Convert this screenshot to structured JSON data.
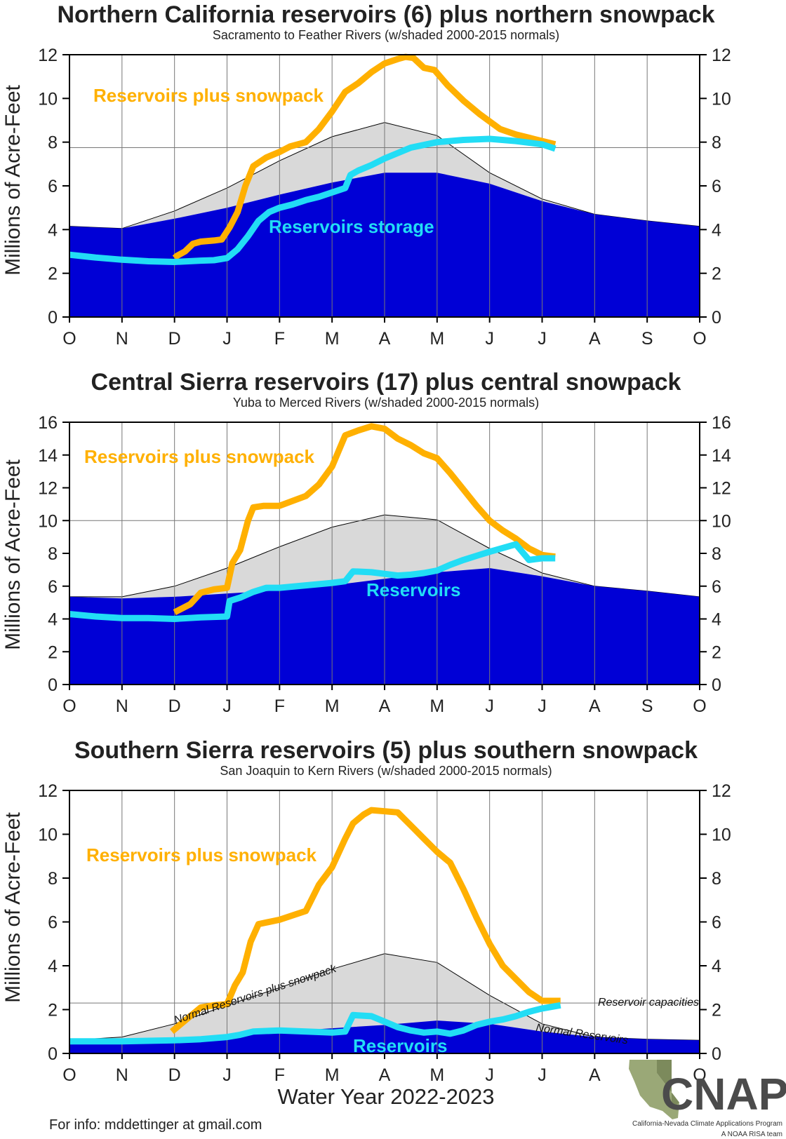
{
  "colors": {
    "normal_total_fill": "#d9d9d9",
    "normal_reservoir_fill": "#0000d6",
    "snowpack_line": "#ffb000",
    "reservoir_line": "#22ddf5",
    "axis": "#000000",
    "grid": "#777777"
  },
  "footer": {
    "text": "For info: mddettinger at gmail.com"
  },
  "logo": {
    "icon": "california-nevada-map-icon",
    "text": "CNAP",
    "line1": "California-Nevada Climate Applications Program",
    "line2": "A NOAA RISA team"
  },
  "chart_data": [
    {
      "type": "area",
      "title": "Northern California reservoirs (6) plus northern snowpack",
      "subtitle": "Sacramento to Feather Rivers (w/shaded 2000-2015 normals)",
      "ylabel": "Millions of Acre-Feet",
      "xlabel": "",
      "ylim": [
        0,
        12
      ],
      "yticks": [
        0,
        2,
        4,
        6,
        8,
        10,
        12
      ],
      "x_ticks": [
        "O",
        "N",
        "D",
        "J",
        "F",
        "M",
        "A",
        "M",
        "J",
        "J",
        "A",
        "S",
        "O"
      ],
      "grid": "vertical at month ticks",
      "reference_line": {
        "label": "",
        "value": 7.75
      },
      "normal_total": [
        4.15,
        4.05,
        4.85,
        5.9,
        7.15,
        8.25,
        8.9,
        8.3,
        6.6,
        5.4,
        4.7,
        4.4,
        4.15
      ],
      "normal_reservoirs": [
        4.15,
        4.05,
        4.5,
        5.0,
        5.6,
        6.15,
        6.6,
        6.6,
        6.1,
        5.3,
        4.7,
        4.4,
        4.15
      ],
      "series": [
        {
          "name": "Reservoirs plus snowpack",
          "color": "#ffb000",
          "x": [
            2.0,
            2.05,
            2.2,
            2.35,
            2.5,
            2.75,
            2.9,
            3.05,
            3.2,
            3.35,
            3.5,
            3.75,
            4.0,
            4.2,
            4.5,
            4.75,
            5.0,
            5.25,
            5.5,
            5.75,
            6.0,
            6.25,
            6.4,
            6.55,
            6.75,
            6.95,
            7.2,
            7.5,
            7.8,
            8.0,
            8.2,
            8.5,
            8.75,
            9.0,
            9.25
          ],
          "y": [
            2.7,
            2.8,
            3.0,
            3.35,
            3.45,
            3.5,
            3.55,
            4.1,
            4.8,
            6.0,
            6.9,
            7.3,
            7.55,
            7.8,
            8.0,
            8.6,
            9.4,
            10.3,
            10.7,
            11.2,
            11.6,
            11.8,
            11.9,
            11.85,
            11.4,
            11.3,
            10.6,
            9.9,
            9.3,
            8.95,
            8.6,
            8.35,
            8.2,
            8.05,
            7.9
          ]
        },
        {
          "name": "Reservoirs storage",
          "color": "#22ddf5",
          "x": [
            0.0,
            0.5,
            1.0,
            1.5,
            2.0,
            2.5,
            2.75,
            3.0,
            3.2,
            3.4,
            3.6,
            3.8,
            4.0,
            4.25,
            4.5,
            4.75,
            5.0,
            5.25,
            5.35,
            5.5,
            5.75,
            6.0,
            6.5,
            7.0,
            7.5,
            8.0,
            8.5,
            9.0,
            9.25
          ],
          "y": [
            2.85,
            2.72,
            2.62,
            2.55,
            2.52,
            2.58,
            2.6,
            2.7,
            3.1,
            3.7,
            4.4,
            4.8,
            5.0,
            5.15,
            5.35,
            5.5,
            5.7,
            5.9,
            6.5,
            6.7,
            6.95,
            7.25,
            7.75,
            8.0,
            8.1,
            8.15,
            8.05,
            7.9,
            7.7
          ]
        }
      ],
      "labels": [
        {
          "text": "Reservoirs plus snowpack",
          "color": "#ffb000"
        },
        {
          "text": "Reservoirs storage",
          "color": "#22ddf5"
        }
      ]
    },
    {
      "type": "area",
      "title": "Central Sierra reservoirs (17) plus central snowpack",
      "subtitle": "Yuba to Merced Rivers (w/shaded 2000-2015 normals)",
      "ylabel": "Millions of Acre-Feet",
      "xlabel": "",
      "ylim": [
        0,
        16
      ],
      "yticks": [
        0,
        2,
        4,
        6,
        8,
        10,
        12,
        14,
        16
      ],
      "x_ticks": [
        "O",
        "N",
        "D",
        "J",
        "F",
        "M",
        "A",
        "M",
        "J",
        "J",
        "A",
        "S",
        "O"
      ],
      "grid": "vertical at month ticks",
      "reference_line": {
        "label": "",
        "value": 10.0
      },
      "normal_total": [
        5.35,
        5.35,
        6.0,
        7.1,
        8.4,
        9.6,
        10.35,
        10.05,
        8.3,
        6.8,
        6.0,
        5.7,
        5.35
      ],
      "normal_reservoirs": [
        5.35,
        5.25,
        5.35,
        5.55,
        5.75,
        6.05,
        6.45,
        6.85,
        7.1,
        6.6,
        6.0,
        5.7,
        5.35
      ],
      "series": [
        {
          "name": "Reservoirs plus snowpack",
          "color": "#ffb000",
          "x": [
            2.0,
            2.3,
            2.5,
            2.75,
            3.0,
            3.1,
            3.25,
            3.4,
            3.5,
            3.7,
            4.0,
            4.25,
            4.5,
            4.75,
            5.0,
            5.25,
            5.5,
            5.75,
            6.0,
            6.25,
            6.5,
            6.75,
            7.0,
            7.25,
            7.5,
            7.75,
            8.0,
            8.25,
            8.5,
            8.75,
            9.0,
            9.25
          ],
          "y": [
            4.4,
            4.9,
            5.6,
            5.8,
            5.9,
            7.4,
            8.2,
            10.0,
            10.8,
            10.9,
            10.9,
            11.2,
            11.5,
            12.2,
            13.3,
            15.2,
            15.5,
            15.75,
            15.6,
            15.0,
            14.6,
            14.1,
            13.8,
            12.9,
            11.9,
            10.9,
            10.0,
            9.4,
            8.9,
            8.3,
            7.9,
            7.8
          ]
        },
        {
          "name": "Reservoirs",
          "color": "#22ddf5",
          "x": [
            0.0,
            0.5,
            1.0,
            1.5,
            2.0,
            2.5,
            3.0,
            3.05,
            3.25,
            3.5,
            3.75,
            4.0,
            4.5,
            5.0,
            5.25,
            5.4,
            5.75,
            6.0,
            6.25,
            6.5,
            6.75,
            7.0,
            7.25,
            7.5,
            7.75,
            8.0,
            8.5,
            8.75,
            9.0,
            9.25
          ],
          "y": [
            4.3,
            4.15,
            4.05,
            4.05,
            4.0,
            4.1,
            4.15,
            5.1,
            5.3,
            5.65,
            5.9,
            5.9,
            6.05,
            6.2,
            6.3,
            6.9,
            6.85,
            6.75,
            6.65,
            6.7,
            6.8,
            6.95,
            7.3,
            7.6,
            7.85,
            8.1,
            8.55,
            7.6,
            7.7,
            7.7
          ]
        }
      ],
      "labels": [
        {
          "text": "Reservoirs plus snowpack",
          "color": "#ffb000"
        },
        {
          "text": "Reservoirs",
          "color": "#22ddf5"
        }
      ]
    },
    {
      "type": "area",
      "title": "Southern Sierra reservoirs (5) plus southern snowpack",
      "subtitle": "San Joaquin to Kern Rivers (w/shaded 2000-2015 normals)",
      "ylabel": "Millions of Acre-Feet",
      "xlabel": "Water Year 2022-2023",
      "ylim": [
        0,
        12
      ],
      "yticks": [
        0,
        2,
        4,
        6,
        8,
        10,
        12
      ],
      "x_ticks": [
        "O",
        "N",
        "D",
        "J",
        "F",
        "M",
        "A",
        "M",
        "J",
        "J",
        "A",
        "S",
        "O"
      ],
      "grid": "vertical at month ticks",
      "reference_line": {
        "label": "Reservoir capacities",
        "value": 2.3
      },
      "normal_total": [
        0.6,
        0.75,
        1.35,
        2.2,
        3.0,
        3.85,
        4.55,
        4.15,
        2.65,
        1.35,
        0.75,
        0.65,
        0.6
      ],
      "normal_reservoirs": [
        0.6,
        0.55,
        0.7,
        0.85,
        1.0,
        1.15,
        1.3,
        1.5,
        1.35,
        1.0,
        0.75,
        0.65,
        0.6
      ],
      "annotations": [
        {
          "text": "Normal Reservoirs plus snowpack"
        },
        {
          "text": "Normal Reservoirs"
        }
      ],
      "series": [
        {
          "name": "Reservoirs plus snowpack",
          "color": "#ffb000",
          "x": [
            1.95,
            2.1,
            2.3,
            2.5,
            2.75,
            3.0,
            3.15,
            3.3,
            3.45,
            3.6,
            4.0,
            4.25,
            4.5,
            4.75,
            5.0,
            5.25,
            5.4,
            5.6,
            5.75,
            6.0,
            6.25,
            6.5,
            6.75,
            7.0,
            7.25,
            7.5,
            7.75,
            8.0,
            8.25,
            8.5,
            8.75,
            9.0,
            9.35
          ],
          "y": [
            1.0,
            1.3,
            1.7,
            2.1,
            2.2,
            2.25,
            3.1,
            3.7,
            5.1,
            5.9,
            6.1,
            6.3,
            6.5,
            7.7,
            8.5,
            9.8,
            10.5,
            10.9,
            11.1,
            11.05,
            11.0,
            10.4,
            9.8,
            9.2,
            8.7,
            7.5,
            6.2,
            5.0,
            4.0,
            3.4,
            2.8,
            2.4,
            2.4
          ]
        },
        {
          "name": "Reservoirs",
          "color": "#22ddf5",
          "x": [
            0.0,
            1.0,
            2.0,
            2.5,
            3.0,
            3.25,
            3.5,
            4.0,
            4.5,
            5.0,
            5.25,
            5.4,
            5.75,
            6.0,
            6.25,
            6.5,
            6.75,
            7.0,
            7.25,
            7.5,
            7.75,
            8.0,
            8.25,
            8.5,
            8.75,
            9.0,
            9.35
          ],
          "y": [
            0.55,
            0.55,
            0.6,
            0.65,
            0.75,
            0.85,
            1.0,
            1.05,
            1.0,
            0.95,
            1.0,
            1.75,
            1.7,
            1.45,
            1.2,
            1.05,
            0.95,
            1.0,
            0.9,
            1.05,
            1.3,
            1.45,
            1.55,
            1.7,
            1.9,
            2.05,
            2.2
          ]
        }
      ],
      "labels": [
        {
          "text": "Reservoirs plus snowpack",
          "color": "#ffb000"
        },
        {
          "text": "Reservoirs",
          "color": "#22ddf5"
        }
      ]
    }
  ]
}
